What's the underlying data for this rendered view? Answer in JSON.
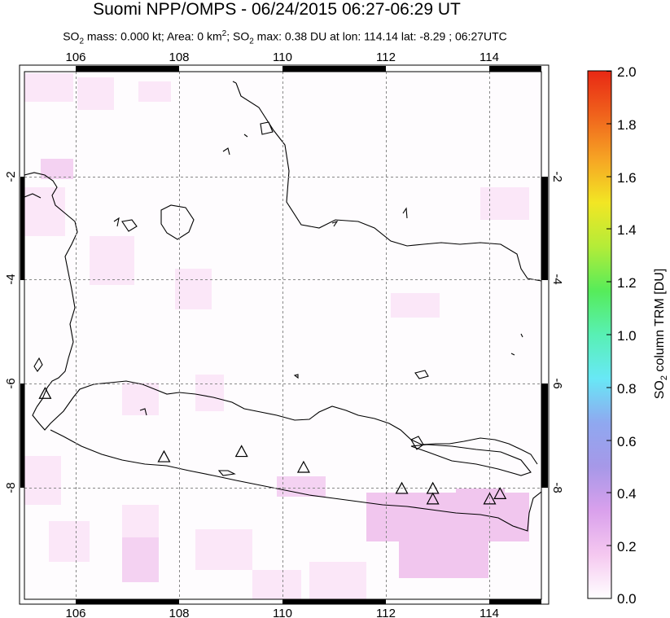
{
  "title": "Suomi NPP/OMPS - 06/24/2015 06:27-06:29 UT",
  "subtitle": {
    "p1": "SO",
    "sub1": "2",
    "p2": " mass: 0.000 kt; Area: 0 km",
    "sup": "2",
    "p3": "; SO",
    "sub2": "2",
    "p4": " max: 0.38 DU at lon: 114.14 lat: -8.29 ; 06:27UTC"
  },
  "map": {
    "lon_range": [
      105,
      115
    ],
    "lat_range": [
      -10,
      0
    ],
    "lon_ticks": [
      "106",
      "108",
      "110",
      "112",
      "114"
    ],
    "lat_ticks_left": [
      "-2",
      "-4",
      "-6",
      "-8"
    ],
    "lat_ticks_right": [
      "-2",
      "-4",
      "-6",
      "-8"
    ],
    "volcanoes": [
      {
        "lon": 105.4,
        "lat": -6.1
      },
      {
        "lon": 107.7,
        "lat": -7.3
      },
      {
        "lon": 109.2,
        "lat": -7.2
      },
      {
        "lon": 110.4,
        "lat": -7.5
      },
      {
        "lon": 112.3,
        "lat": -7.9
      },
      {
        "lon": 112.9,
        "lat": -7.9
      },
      {
        "lon": 112.9,
        "lat": -8.1
      },
      {
        "lon": 114.0,
        "lat": -8.1
      },
      {
        "lon": 114.2,
        "lat": -8.0
      }
    ]
  },
  "colorbar": {
    "labels": [
      "2.0",
      "1.8",
      "1.6",
      "1.4",
      "1.2",
      "1.0",
      "0.8",
      "0.6",
      "0.4",
      "0.2",
      "0.0"
    ],
    "title_p1": "SO",
    "title_sub": "2",
    "title_p2": " column TRM [DU]",
    "colors": [
      "#ffffff",
      "#f5c8f0",
      "#d9a0ec",
      "#a698e8",
      "#8fa8f0",
      "#68e8f6",
      "#58f0b4",
      "#56ec5a",
      "#b4ec38",
      "#f2e624",
      "#f6a424",
      "#f0621c",
      "#e82814"
    ]
  }
}
